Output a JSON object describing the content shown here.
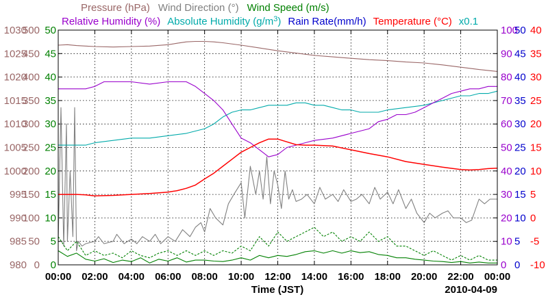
{
  "chart_data": {
    "type": "line",
    "date": "2010-04-09",
    "x_label": "Time (JST)",
    "x_ticks": [
      "00:00",
      "02:00",
      "04:00",
      "06:00",
      "08:00",
      "10:00",
      "12:00",
      "14:00",
      "16:00",
      "18:00",
      "20:00",
      "22:00",
      "00:00"
    ],
    "xlim_hours": [
      0,
      24
    ],
    "grid": true,
    "legend_placement": "top",
    "legend": [
      {
        "key": "pressure",
        "parts": [
          {
            "t": "Pressure (hPa)"
          }
        ],
        "color": "#996666"
      },
      {
        "key": "wind_dir",
        "parts": [
          {
            "t": "Wind Direction (°)"
          }
        ],
        "color": "#808080"
      },
      {
        "key": "wind_speed",
        "parts": [
          {
            "t": "Wind Speed (m/s)"
          }
        ],
        "color": "#008000"
      },
      {
        "key": "rel_hum",
        "parts": [
          {
            "t": "Relative Humidity (%)"
          }
        ],
        "color": "#9900cc"
      },
      {
        "key": "abs_hum",
        "parts": [
          {
            "t": "Absolute Humidity (g/m"
          },
          {
            "t": "3",
            "sup": true
          },
          {
            "t": ")"
          }
        ],
        "color": "#00aaaa"
      },
      {
        "key": "rain",
        "parts": [
          {
            "t": "Rain Rate(mm/h)"
          }
        ],
        "color": "#0000cc"
      },
      {
        "key": "temp",
        "parts": [
          {
            "t": "Temperature (°C)"
          }
        ],
        "color": "#ff0000"
      },
      {
        "key": "x01",
        "parts": [
          {
            "t": "x0.1"
          }
        ],
        "color": "#00aaaa"
      }
    ],
    "axes": {
      "pressure": {
        "color": "#996666",
        "ticks": [
          "980",
          "985",
          "990",
          "995",
          "1000",
          "1005",
          "1010",
          "1015",
          "1020",
          "1025",
          "1030"
        ],
        "range": [
          980,
          1030
        ]
      },
      "wind_dir": {
        "color": "#996666",
        "ticks": [
          "0",
          "50",
          "100",
          "150",
          "200",
          "250",
          "300",
          "350",
          "400",
          "450",
          "500"
        ],
        "range": [
          0,
          500
        ]
      },
      "wind_speed": {
        "color": "#008000",
        "ticks": [
          "0",
          "5",
          "10",
          "15",
          "20",
          "25",
          "30",
          "35",
          "40",
          "45",
          "50"
        ],
        "range": [
          0,
          50
        ]
      },
      "rel_hum": {
        "color": "#9900cc",
        "ticks": [
          "0",
          "10",
          "20",
          "30",
          "40",
          "50",
          "60",
          "70",
          "80",
          "90",
          "100"
        ],
        "range": [
          0,
          100
        ]
      },
      "rain": {
        "color": "#0000cc",
        "ticks": [
          "0",
          "5",
          "10",
          "15",
          "20",
          "25",
          "30",
          "35",
          "40",
          "45",
          "50"
        ],
        "range": [
          0,
          50
        ]
      },
      "temp": {
        "color": "#ff0000",
        "ticks": [
          "-10",
          "-5",
          "0",
          "5",
          "10",
          "15",
          "20",
          "25",
          "30",
          "35",
          "40"
        ],
        "range": [
          -10,
          40
        ]
      }
    },
    "series": [
      {
        "key": "pressure",
        "axis": "pressure",
        "color": "#996666",
        "x": [
          0,
          0.5,
          1,
          1.5,
          2,
          3,
          4,
          5,
          6,
          6.5,
          7,
          7.5,
          8,
          8.5,
          9,
          10,
          11,
          12,
          13,
          14,
          15,
          16,
          17,
          18,
          19,
          20,
          21,
          22,
          23,
          24
        ],
        "y": [
          1026.8,
          1026.9,
          1026.7,
          1026.6,
          1026.5,
          1026.4,
          1026.5,
          1026.6,
          1026.9,
          1027.2,
          1027.5,
          1027.6,
          1027.6,
          1027.5,
          1027.3,
          1026.8,
          1026.2,
          1025.6,
          1025.1,
          1024.6,
          1024.3,
          1024.0,
          1023.7,
          1023.5,
          1023.2,
          1023.0,
          1022.6,
          1022.1,
          1021.6,
          1021.2
        ]
      },
      {
        "key": "rel_hum",
        "axis": "rel_hum",
        "color": "#9900cc",
        "x": [
          0,
          0.5,
          1,
          1.5,
          2,
          2.5,
          3,
          4,
          5,
          6,
          6.5,
          7,
          7.5,
          8,
          8.5,
          9,
          9.5,
          10,
          10.5,
          11,
          11.5,
          12,
          12.5,
          13,
          13.5,
          14,
          15,
          16,
          16.5,
          17,
          17.5,
          18,
          18.5,
          19,
          19.5,
          20,
          20.5,
          21,
          21.5,
          22,
          22.5,
          23,
          23.5,
          24
        ],
        "y": [
          75,
          75,
          75,
          75,
          76,
          78,
          78,
          78,
          77,
          78,
          78,
          78,
          76,
          73,
          70,
          66,
          60,
          54,
          52,
          49,
          46,
          47,
          50,
          51,
          52,
          53,
          54,
          56,
          57,
          58,
          61,
          62,
          64,
          64,
          65,
          67,
          69,
          71,
          73,
          74,
          75,
          75,
          76,
          76
        ]
      },
      {
        "key": "abs_hum",
        "axis": "rel_hum",
        "color": "#00aaaa",
        "x": [
          0,
          0.5,
          1,
          1.5,
          2,
          3,
          4,
          5,
          6,
          7,
          7.5,
          8,
          8.5,
          9,
          9.5,
          10,
          10.5,
          11,
          11.5,
          12,
          12.5,
          13,
          13.5,
          14,
          14.5,
          15,
          15.5,
          16,
          16.5,
          17,
          17.5,
          18,
          19,
          20,
          21,
          22,
          22.5,
          23,
          23.5,
          24
        ],
        "y": [
          51,
          51,
          51,
          51,
          52,
          53,
          54,
          54,
          55,
          56,
          57,
          58,
          60,
          63,
          65,
          66,
          66,
          67,
          68,
          68,
          68,
          69,
          69,
          68,
          68,
          67,
          66,
          66,
          65,
          65,
          65,
          66,
          67,
          68,
          70,
          72,
          72,
          73,
          73,
          74
        ]
      },
      {
        "key": "temp",
        "axis": "temp",
        "color": "#ff0000",
        "x": [
          0,
          0.5,
          1,
          1.5,
          2,
          3,
          4,
          5,
          6,
          6.5,
          7,
          7.5,
          8,
          8.5,
          9,
          9.5,
          10,
          10.5,
          11,
          11.5,
          12,
          12.5,
          13,
          13.5,
          14,
          15,
          16,
          17,
          18,
          19,
          20,
          21,
          22,
          22.5,
          23,
          23.5,
          24
        ],
        "y": [
          5.0,
          5.0,
          5.0,
          4.9,
          4.7,
          4.8,
          5.0,
          5.2,
          5.5,
          5.8,
          6.3,
          7.0,
          8.3,
          9.5,
          11.0,
          12.5,
          14.0,
          15.0,
          16.0,
          16.8,
          16.8,
          16.2,
          15.6,
          15.5,
          15.5,
          15.3,
          14.5,
          13.7,
          13.0,
          12.0,
          11.4,
          10.8,
          10.3,
          10.2,
          10.3,
          10.5,
          10.6
        ]
      },
      {
        "key": "wind_dir",
        "axis": "wind_dir",
        "color": "#808080",
        "x": [
          0,
          0.15,
          0.3,
          0.45,
          0.5,
          0.65,
          0.8,
          0.9,
          1,
          1.1,
          1.3,
          1.5,
          2,
          2.2,
          2.5,
          3,
          3.2,
          3.6,
          4,
          4.3,
          4.6,
          5,
          5.3,
          5.6,
          6,
          6.4,
          6.8,
          7.2,
          7.5,
          7.8,
          8,
          8.3,
          8.6,
          9,
          9.3,
          9.6,
          10,
          10.2,
          10.5,
          10.8,
          11,
          11.2,
          11.4,
          11.6,
          11.8,
          12,
          12.2,
          12.4,
          12.6,
          12.8,
          13,
          13.3,
          13.6,
          14,
          14.3,
          14.6,
          15,
          15.3,
          15.6,
          16,
          16.3,
          16.6,
          17,
          17.3,
          17.6,
          18,
          18.3,
          18.6,
          19,
          19.3,
          19.6,
          20,
          20.3,
          20.6,
          21,
          21.3,
          21.6,
          22,
          22.3,
          22.6,
          23,
          23.3,
          23.6,
          24
        ],
        "y": [
          50,
          335,
          40,
          300,
          50,
          200,
          60,
          335,
          30,
          50,
          40,
          45,
          50,
          60,
          45,
          50,
          65,
          45,
          55,
          45,
          60,
          50,
          65,
          45,
          60,
          50,
          75,
          60,
          80,
          90,
          70,
          120,
          100,
          85,
          130,
          150,
          175,
          100,
          210,
          150,
          200,
          140,
          230,
          130,
          200,
          170,
          120,
          200,
          140,
          160,
          135,
          140,
          150,
          130,
          165,
          140,
          150,
          135,
          160,
          135,
          140,
          150,
          130,
          165,
          140,
          155,
          130,
          160,
          120,
          140,
          110,
          90,
          110,
          100,
          110,
          115,
          100,
          100,
          90,
          95,
          140,
          130,
          140,
          140
        ]
      },
      {
        "key": "wind_speed",
        "axis": "wind_speed",
        "color": "#008000",
        "x": [
          0,
          0.5,
          1,
          1.5,
          2,
          2.5,
          3,
          3.5,
          4,
          4.5,
          5,
          5.5,
          6,
          6.5,
          7,
          7.5,
          8,
          8.5,
          9,
          9.5,
          10,
          10.5,
          11,
          11.5,
          12,
          12.5,
          13,
          13.5,
          14,
          14.5,
          15,
          15.5,
          16,
          16.5,
          17,
          17.5,
          18,
          18.5,
          19,
          19.5,
          20,
          20.5,
          21,
          21.5,
          22,
          22.5,
          23,
          23.5,
          24
        ],
        "y": [
          3.0,
          1.8,
          2.5,
          1.2,
          0.8,
          1.3,
          0.5,
          1.0,
          0.7,
          1.5,
          0.4,
          1.2,
          0.8,
          1.5,
          0.6,
          1.0,
          1.0,
          0.8,
          0.7,
          1.0,
          1.5,
          1.0,
          2.0,
          1.5,
          2.0,
          1.8,
          2.2,
          2.8,
          3.0,
          2.5,
          3.0,
          2.5,
          3.0,
          2.6,
          2.8,
          2.2,
          2.0,
          1.5,
          1.5,
          1.2,
          1.0,
          0.8,
          0.7,
          0.5,
          0.7,
          0.4,
          0.6,
          0.4,
          0.4
        ]
      },
      {
        "key": "wind_gust",
        "axis": "wind_speed",
        "color": "#008000",
        "dashed": true,
        "x": [
          0,
          0.5,
          1,
          1.5,
          2,
          2.5,
          3,
          3.5,
          4,
          4.5,
          5,
          5.5,
          6,
          6.5,
          7,
          7.5,
          8,
          8.5,
          9,
          9.5,
          10,
          10.5,
          11,
          11.5,
          12,
          12.5,
          13,
          13.5,
          14,
          14.5,
          15,
          15.5,
          16,
          16.5,
          17,
          17.5,
          18,
          18.5,
          19,
          19.5,
          20,
          20.5,
          21,
          21.5,
          22,
          22.5,
          23,
          23.5,
          24
        ],
        "y": [
          6,
          3,
          5,
          2,
          3,
          2,
          2.5,
          1.5,
          3,
          2,
          1.5,
          2.5,
          3,
          2,
          3,
          2,
          3,
          2,
          3,
          2.5,
          4,
          3,
          6,
          4,
          7,
          5,
          6,
          7,
          8,
          6,
          7,
          5,
          6,
          5,
          7,
          5,
          6,
          4,
          4,
          3,
          2,
          3,
          2,
          1,
          2,
          1,
          2,
          1,
          1
        ]
      },
      {
        "key": "rain",
        "axis": "rain",
        "color": "#0000cc",
        "x": [
          0,
          24
        ],
        "y": [
          0,
          0
        ]
      }
    ]
  }
}
